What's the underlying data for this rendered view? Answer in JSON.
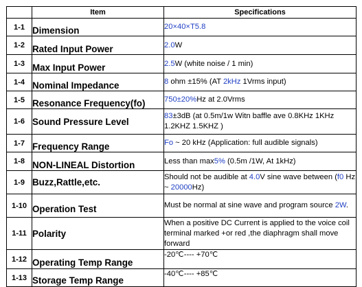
{
  "header": {
    "item": "Item",
    "spec": "Specifications"
  },
  "rows": [
    {
      "no": "1-1",
      "item": "Dimension",
      "spec": [
        {
          "t": "20×40×T5.8",
          "c": "blue"
        }
      ]
    },
    {
      "no": "1-2",
      "item": "Rated Input Power",
      "spec": [
        {
          "t": "2.0",
          "c": "blue"
        },
        {
          "t": "W"
        }
      ]
    },
    {
      "no": "1-3",
      "item": "Max Input Power",
      "spec": [
        {
          "t": "2.5",
          "c": "blue"
        },
        {
          "t": "W (white noise / 1 min)"
        }
      ]
    },
    {
      "no": "1-4",
      "item": "Nominal Impedance",
      "spec": [
        {
          "t": "8",
          "c": "blue"
        },
        {
          "t": " ohm ±15% (AT "
        },
        {
          "t": "2kHz",
          "c": "blue"
        },
        {
          "t": " 1Vrms input)"
        }
      ]
    },
    {
      "no": "1-5",
      "item": "Resonance Frequency(fo)",
      "spec": [
        {
          "t": "750±20%",
          "c": "blue"
        },
        {
          "t": "Hz at 2.0Vrms"
        }
      ]
    },
    {
      "no": "1-6",
      "item": "Sound Pressure Level",
      "spec": [
        {
          "t": "83",
          "c": "blue"
        },
        {
          "t": "±3dB (at 0.5m/1w Witn baffle ave 0.8KHz 1KHz 1.2KHZ 1.5KHZ )"
        }
      ]
    },
    {
      "no": "1-7",
      "item": "Frequency Range",
      "spec": [
        {
          "t": "Fo",
          "c": "blue"
        },
        {
          "t": " ~ 20 kHz (Application: full audible signals)"
        }
      ]
    },
    {
      "no": "1-8",
      "item": "NON-LINEAL Distortion",
      "spec": [
        {
          "t": "Less than max"
        },
        {
          "t": "5%",
          "c": "blue"
        },
        {
          "t": " (0.5m /1W, At 1kHz)"
        }
      ]
    },
    {
      "no": "1-9",
      "item": "Buzz,Rattle,etc.",
      "spec": [
        {
          "t": "Should not be audible at "
        },
        {
          "t": "4.0",
          "c": "blue"
        },
        {
          "t": "V sine wave between ("
        },
        {
          "t": "f0",
          "c": "blue"
        },
        {
          "t": " Hz ~ "
        },
        {
          "t": "20000",
          "c": "blue"
        },
        {
          "t": "Hz)"
        }
      ]
    },
    {
      "no": "1-10",
      "item": "Operation Test",
      "spec": [
        {
          "t": "Must be normal at sine wave and program source "
        },
        {
          "t": "2W",
          "c": "blue"
        },
        {
          "t": "."
        }
      ]
    },
    {
      "no": "1-11",
      "item": "Polarity",
      "spec": [
        {
          "t": "When a positive DC Current is applied to the voice coil terminal marked +or red ,the diaphragm shall move forward"
        }
      ]
    },
    {
      "no": "1-12",
      "item": "Operating Temp Range",
      "spec": [
        {
          "t": "-20℃---- +70℃"
        }
      ]
    },
    {
      "no": "1-13",
      "item": "Storage Temp Range",
      "spec": [
        {
          "t": "-40℃---- +85℃"
        }
      ]
    }
  ]
}
